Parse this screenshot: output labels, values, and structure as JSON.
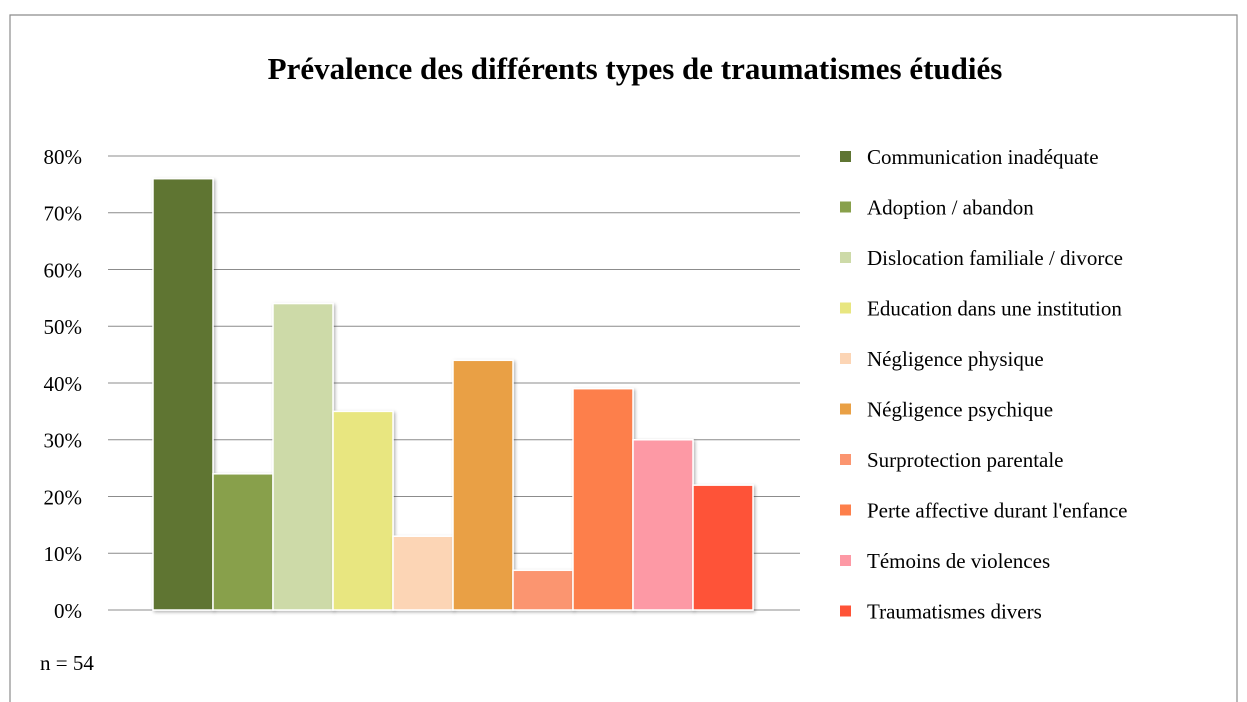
{
  "chart_data": {
    "type": "bar",
    "title": "Prévalence des différents types de traumatismes étudiés",
    "annotation": "n = 54",
    "series": [
      {
        "name": "Communication inadéquate",
        "color": "#5f7533",
        "values": [
          76
        ]
      },
      {
        "name": "Adoption / abandon",
        "color": "#88a04b",
        "values": [
          24
        ]
      },
      {
        "name": "Dislocation familiale / divorce",
        "color": "#cddaa8",
        "values": [
          54
        ]
      },
      {
        "name": "Education dans une institution",
        "color": "#e8e680",
        "values": [
          35
        ]
      },
      {
        "name": "Négligence physique",
        "color": "#fcd5b5",
        "values": [
          13
        ]
      },
      {
        "name": "Négligence psychique",
        "color": "#e9a045",
        "values": [
          44
        ]
      },
      {
        "name": "Surprotection parentale",
        "color": "#fb9570",
        "values": [
          7
        ]
      },
      {
        "name": "Perte affective durant l'enfance",
        "color": "#fd7f4b",
        "values": [
          39
        ]
      },
      {
        "name": "Témoins de violences",
        "color": "#fd99a5",
        "values": [
          30
        ]
      },
      {
        "name": "Traumatismes divers",
        "color": "#fe5337",
        "values": [
          22
        ]
      }
    ],
    "ylim": [
      0,
      80
    ],
    "yticks": [
      {
        "value": 0,
        "label": "0%"
      },
      {
        "value": 10,
        "label": "10%"
      },
      {
        "value": 20,
        "label": "20%"
      },
      {
        "value": 30,
        "label": "30%"
      },
      {
        "value": 40,
        "label": "40%"
      },
      {
        "value": 50,
        "label": "50%"
      },
      {
        "value": 60,
        "label": "60%"
      },
      {
        "value": 70,
        "label": "70%"
      },
      {
        "value": 80,
        "label": "80%"
      }
    ],
    "grid": true,
    "legend": "right"
  }
}
